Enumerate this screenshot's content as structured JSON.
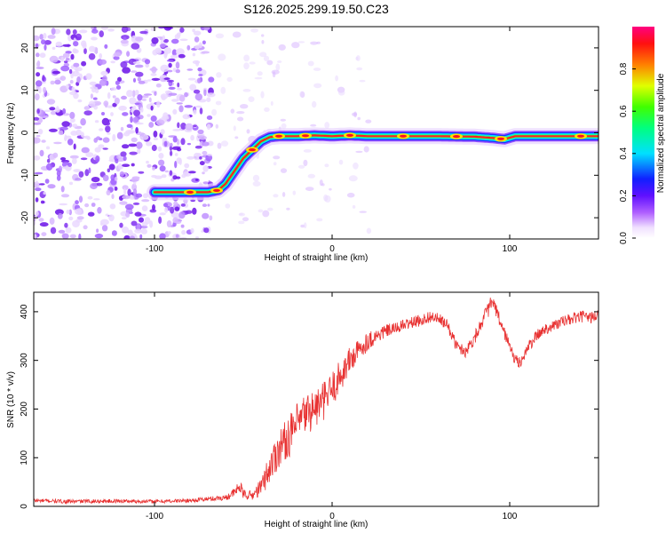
{
  "title": "S126.2025.299.19.50.C23",
  "chart_data": [
    {
      "type": "heatmap",
      "xlabel": "Height of straight line (km)",
      "ylabel": "Frequency (Hz)",
      "xlim": [
        -168,
        150
      ],
      "ylim": [
        -25,
        25
      ],
      "xticks": [
        -100,
        0,
        100
      ],
      "yticks": [
        -20,
        -10,
        0,
        10,
        20
      ],
      "ridge": {
        "x": [
          -100,
          -90,
          -80,
          -70,
          -64,
          -60,
          -55,
          -50,
          -45,
          -40,
          -35,
          -30,
          -20,
          -10,
          0,
          10,
          20,
          40,
          60,
          80,
          90,
          97,
          103,
          120,
          150
        ],
        "freq": [
          -14,
          -14,
          -14,
          -14,
          -13.5,
          -12,
          -9,
          -6,
          -4,
          -2,
          -1,
          -0.8,
          -0.8,
          -0.6,
          -0.8,
          -0.6,
          -0.8,
          -0.8,
          -0.8,
          -0.9,
          -1.2,
          -1.5,
          -0.8,
          -0.8,
          -0.8
        ]
      },
      "ridge_hotspots_x": [
        -80,
        -65,
        -45,
        -30,
        -15,
        10,
        40,
        70,
        95,
        140
      ],
      "colorbar": {
        "label": "Normalized spectral amplitude",
        "ticks": [
          "0.0",
          "0.2",
          "0.4",
          "0.6",
          "0.8"
        ],
        "range": [
          0,
          1
        ]
      }
    },
    {
      "type": "line",
      "xlabel": "Height of straight line (km)",
      "ylabel": "SNR (10 * v/v)",
      "xlim": [
        -168,
        150
      ],
      "ylim": [
        0,
        440
      ],
      "xticks": [
        -100,
        0,
        100
      ],
      "yticks": [
        0,
        100,
        200,
        300,
        400
      ],
      "series": [
        {
          "name": "SNR",
          "color": "#e83232",
          "x": [
            -168,
            -150,
            -120,
            -100,
            -80,
            -60,
            -55,
            -52,
            -50,
            -45,
            -40,
            -35,
            -30,
            -25,
            -20,
            -15,
            -10,
            -5,
            0,
            5,
            10,
            15,
            20,
            25,
            30,
            35,
            40,
            45,
            50,
            55,
            60,
            65,
            70,
            75,
            80,
            85,
            88,
            90,
            92,
            95,
            100,
            103,
            106,
            110,
            115,
            120,
            125,
            130,
            135,
            140,
            145,
            150
          ],
          "y": [
            12,
            10,
            11,
            10,
            12,
            18,
            28,
            42,
            25,
            22,
            40,
            80,
            120,
            140,
            165,
            190,
            200,
            215,
            240,
            270,
            300,
            320,
            340,
            350,
            360,
            365,
            372,
            378,
            382,
            390,
            385,
            372,
            330,
            318,
            345,
            385,
            405,
            420,
            405,
            375,
            330,
            300,
            295,
            325,
            350,
            365,
            372,
            380,
            385,
            390,
            388,
            392
          ],
          "noise": [
            4,
            4,
            4,
            4,
            4,
            6,
            10,
            14,
            10,
            10,
            18,
            35,
            40,
            42,
            45,
            45,
            42,
            40,
            38,
            34,
            30,
            24,
            20,
            16,
            14,
            12,
            12,
            12,
            12,
            12,
            12,
            12,
            12,
            12,
            14,
            14,
            16,
            18,
            16,
            14,
            12,
            12,
            12,
            12,
            12,
            12,
            12,
            12,
            12,
            12,
            12,
            12
          ]
        }
      ]
    }
  ]
}
